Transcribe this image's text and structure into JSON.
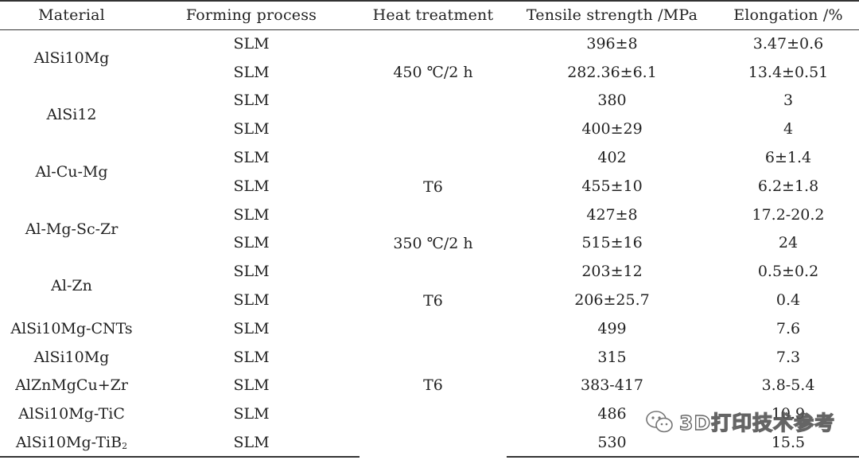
{
  "table": {
    "headers": {
      "material": "Material",
      "process": "Forming process",
      "heat": "Heat treatment",
      "tensile": "Tensile strength /MPa",
      "elongation": "Elongation /%"
    },
    "groups": [
      {
        "material": "AlSi10Mg"
      },
      {
        "material": "AlSi12"
      },
      {
        "material": "Al-Cu-Mg"
      },
      {
        "material": "Al-Mg-Sc-Zr"
      },
      {
        "material": "Al-Zn"
      },
      {
        "material": "AlSi10Mg-CNTs"
      },
      {
        "material": "AlSi10Mg"
      },
      {
        "material": "AlZnMgCu+Zr"
      },
      {
        "material": "AlSi10Mg-TiC"
      },
      {
        "material_base": "AlSi10Mg-TiB",
        "material_sub": "2"
      }
    ],
    "rows": [
      {
        "process": "SLM",
        "heat": "",
        "tensile": "396±8",
        "elongation": "3.47±0.6"
      },
      {
        "process": "SLM",
        "heat": "450 ℃/2 h",
        "tensile": "282.36±6.1",
        "elongation": "13.4±0.51"
      },
      {
        "process": "SLM",
        "heat": "",
        "tensile": "380",
        "elongation": "3"
      },
      {
        "process": "SLM",
        "heat": "",
        "tensile": "400±29",
        "elongation": "4"
      },
      {
        "process": "SLM",
        "heat": "",
        "tensile": "402",
        "elongation": "6±1.4"
      },
      {
        "process": "SLM",
        "heat": "T6",
        "tensile": "455±10",
        "elongation": "6.2±1.8"
      },
      {
        "process": "SLM",
        "heat": "",
        "tensile": "427±8",
        "elongation": "17.2-20.2"
      },
      {
        "process": "SLM",
        "heat": "350 ℃/2 h",
        "tensile": "515±16",
        "elongation": "24"
      },
      {
        "process": "SLM",
        "heat": "",
        "tensile": "203±12",
        "elongation": "0.5±0.2"
      },
      {
        "process": "SLM",
        "heat": "T6",
        "tensile": "206±25.7",
        "elongation": "0.4"
      },
      {
        "process": "SLM",
        "heat": "",
        "tensile": "499",
        "elongation": "7.6"
      },
      {
        "process": "SLM",
        "heat": "",
        "tensile": "315",
        "elongation": "7.3"
      },
      {
        "process": "SLM",
        "heat": "T6",
        "tensile": "383-417",
        "elongation": "3.8-5.4"
      },
      {
        "process": "SLM",
        "heat": "",
        "tensile": "486",
        "elongation": "10.9"
      },
      {
        "process": "SLM",
        "heat": "",
        "tensile": "530",
        "elongation": "15.5"
      }
    ]
  },
  "watermark": {
    "text": "3D打印技术参考",
    "icon": "wechat-icon"
  }
}
